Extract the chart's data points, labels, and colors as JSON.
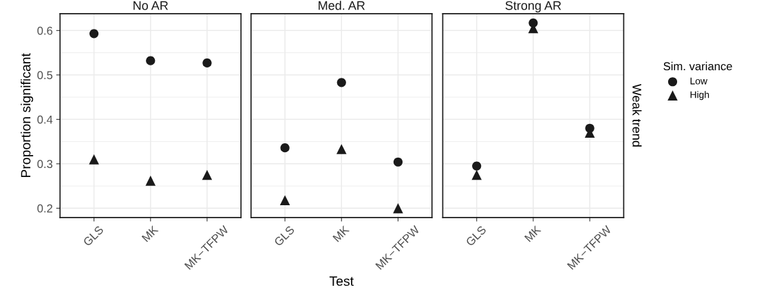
{
  "chart_data": [
    {
      "type": "scatter",
      "title": "No AR",
      "ylabel": "Proportion significant",
      "categories": [
        "GLS",
        "MK",
        "MK−TFPW"
      ],
      "ylim": [
        0.179,
        0.638
      ],
      "yticks": [
        0.2,
        0.3,
        0.4,
        0.5,
        0.6
      ],
      "grid": true,
      "series": [
        {
          "color": "#1a1a1a",
          "marker": "circle",
          "values": [
            0.593,
            0.532,
            0.527
          ]
        },
        {
          "color": "#1a1a1a",
          "marker": "triangle",
          "values": [
            0.31,
            0.262,
            0.275
          ]
        }
      ]
    },
    {
      "type": "scatter",
      "title": "Med. AR",
      "xlabel": "Test",
      "categories": [
        "GLS",
        "MK",
        "MK−TFPW"
      ],
      "ylim": [
        0.179,
        0.638
      ],
      "yticks": [
        0.2,
        0.3,
        0.4,
        0.5,
        0.6
      ],
      "grid": true,
      "tick_labels": "x",
      "series": [
        {
          "color": "#1a1a1a",
          "marker": "circle",
          "values": [
            0.336,
            0.483,
            0.304
          ]
        },
        {
          "color": "#1a1a1a",
          "marker": "triangle",
          "values": [
            0.218,
            0.333,
            0.2
          ]
        }
      ]
    },
    {
      "type": "scatter",
      "title": "Strong AR",
      "categories": [
        "GLS",
        "MK",
        "MK−TFPW"
      ],
      "ylim": [
        0.179,
        0.638
      ],
      "yticks": [
        0.2,
        0.3,
        0.4,
        0.5,
        0.6
      ],
      "grid": true,
      "legend": "right",
      "legend_title": "Sim. variance",
      "tick_labels": "x",
      "annotations": [
        "Weak trend"
      ],
      "series": [
        {
          "name": "Low",
          "color": "#1a1a1a",
          "marker": "circle",
          "values": [
            0.295,
            0.617,
            0.38
          ]
        },
        {
          "name": "High",
          "color": "#1a1a1a",
          "marker": "triangle",
          "values": [
            0.275,
            0.605,
            0.37
          ]
        }
      ]
    }
  ]
}
